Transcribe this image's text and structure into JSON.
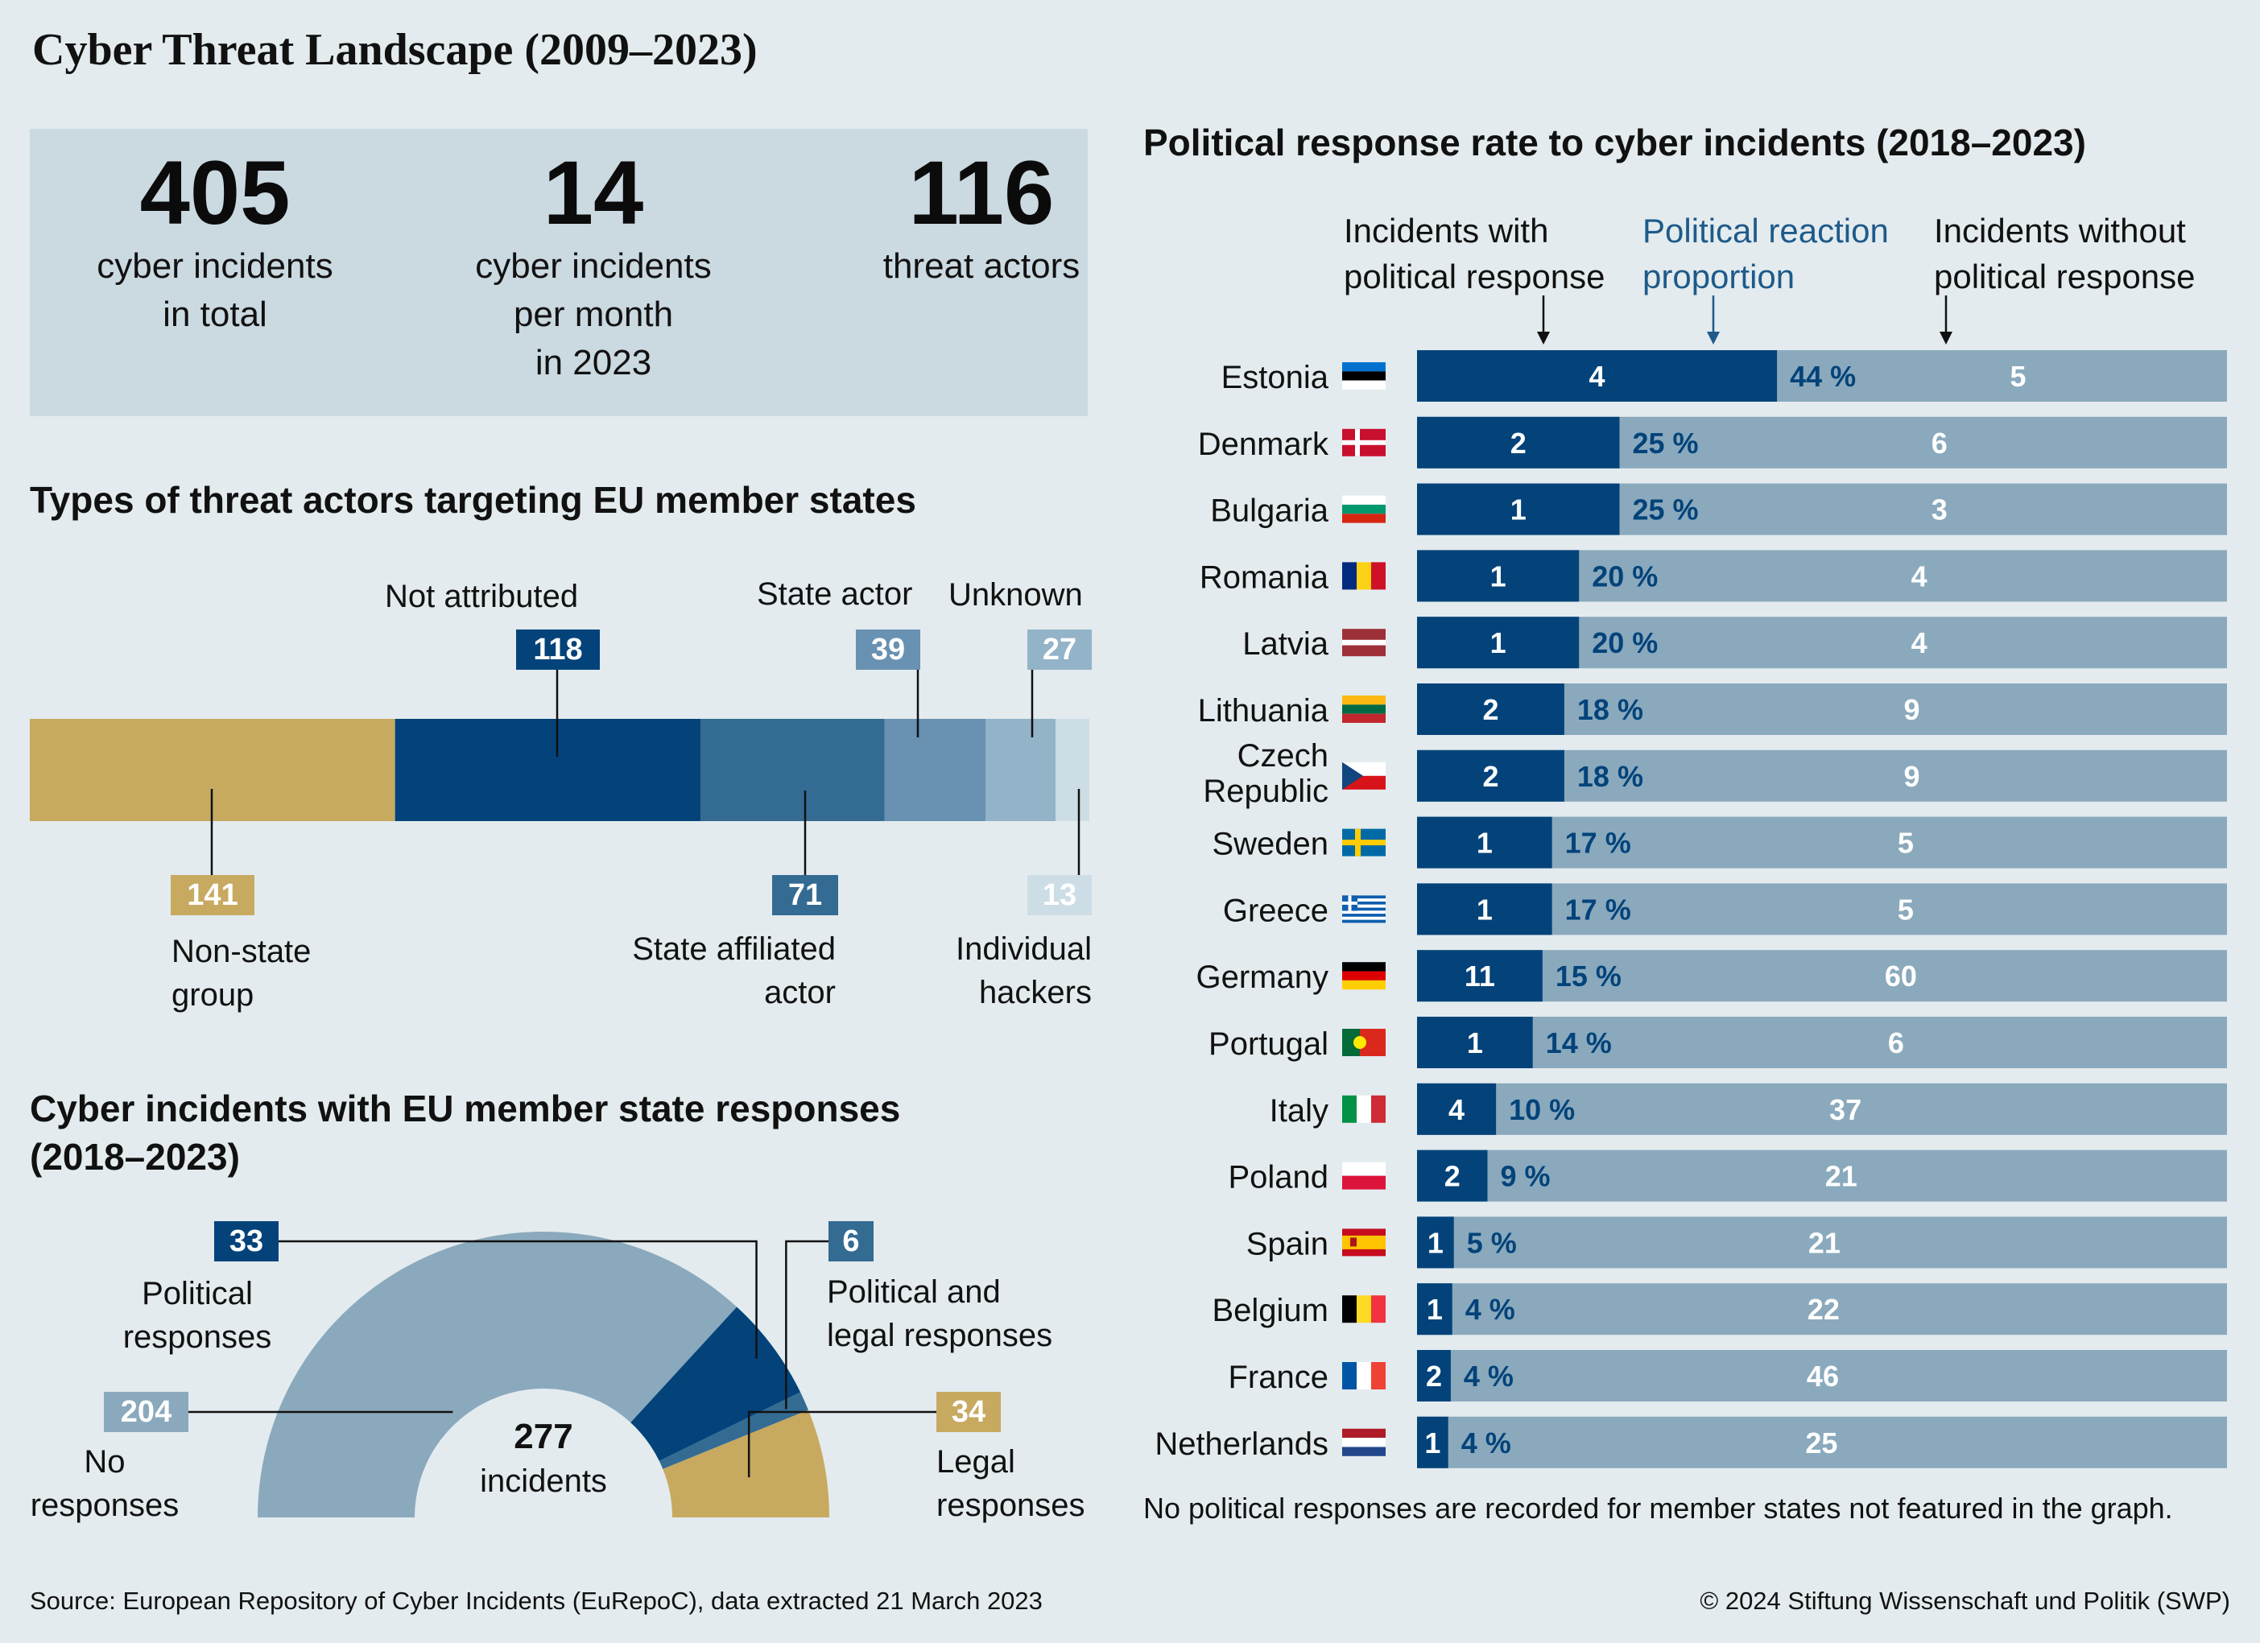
{
  "title": "Cyber Threat Landscape (2009–2023)",
  "stats": [
    {
      "value": "405",
      "label_lines": [
        "cyber incidents",
        "in total"
      ]
    },
    {
      "value": "14",
      "label_lines": [
        "cyber incidents",
        "per month",
        "in 2023"
      ]
    },
    {
      "value": "116",
      "label_lines": [
        "threat actors"
      ]
    }
  ],
  "colors": {
    "navy": "#03437a",
    "mid_blue": "#346b93",
    "steel_blue": "#6991b1",
    "light_blue": "#93b3c8",
    "pale_blue": "#cddde6",
    "gold": "#c7a960",
    "grey_blue": "#8aa9bd",
    "background": "#e3ebee"
  },
  "chart_data": [
    {
      "type": "bar",
      "orientation": "stacked-horizontal",
      "title": "Types of threat actors targeting EU member states",
      "series": [
        {
          "name": "Non-state group",
          "value": 141,
          "color": "#c7a960"
        },
        {
          "name": "Not attributed",
          "value": 118,
          "color": "#03437a"
        },
        {
          "name": "State affiliated actor",
          "value": 71,
          "color": "#346b93"
        },
        {
          "name": "State actor",
          "value": 39,
          "color": "#6991b1"
        },
        {
          "name": "Unknown",
          "value": 27,
          "color": "#93b3c8"
        },
        {
          "name": "Individual hackers",
          "value": 13,
          "color": "#cddde6"
        }
      ],
      "label_texts": {
        "Non-state group": [
          "Non-state",
          "group"
        ],
        "Not attributed": [
          "Not attributed"
        ],
        "State affiliated actor": [
          "State affiliated",
          "actor"
        ],
        "State actor": [
          "State actor"
        ],
        "Unknown": [
          "Unknown"
        ],
        "Individual hackers": [
          "Individual",
          "hackers"
        ]
      }
    },
    {
      "type": "pie",
      "variant": "semicircle-donut",
      "title": "Cyber incidents with EU member state responses (2018–2023)",
      "center_value": "277",
      "center_label": "incidents",
      "slices": [
        {
          "name": "No responses",
          "label_lines": [
            "No",
            "responses"
          ],
          "value": 204,
          "color": "#8aa9bd"
        },
        {
          "name": "Political responses",
          "label_lines": [
            "Political",
            "responses"
          ],
          "value": 33,
          "color": "#03437a"
        },
        {
          "name": "Political and legal responses",
          "label_lines": [
            "Political and",
            "legal responses"
          ],
          "value": 6,
          "color": "#346b93"
        },
        {
          "name": "Legal responses",
          "label_lines": [
            "Legal",
            "responses"
          ],
          "value": 34,
          "color": "#c7a960"
        }
      ]
    },
    {
      "type": "bar",
      "orientation": "horizontal-stacked",
      "title": "Political response rate to cyber incidents (2018–2023)",
      "column_headers": {
        "with": [
          "Incidents with",
          "political response"
        ],
        "proportion": [
          "Political reaction",
          "proportion"
        ],
        "without": [
          "Incidents without",
          "political response"
        ]
      },
      "categories": [
        "Estonia",
        "Denmark",
        "Bulgaria",
        "Romania",
        "Latvia",
        "Lithuania",
        "Czech Republic",
        "Sweden",
        "Greece",
        "Germany",
        "Portugal",
        "Italy",
        "Poland",
        "Spain",
        "Belgium",
        "France",
        "Netherlands"
      ],
      "with_response": [
        4,
        2,
        1,
        1,
        1,
        2,
        2,
        1,
        1,
        11,
        1,
        4,
        2,
        1,
        1,
        2,
        1
      ],
      "without_response": [
        5,
        6,
        3,
        4,
        4,
        9,
        9,
        5,
        5,
        60,
        6,
        37,
        21,
        21,
        22,
        46,
        25
      ],
      "proportion_labels": [
        "44 %",
        "25 %",
        "25 %",
        "20 %",
        "20 %",
        "18 %",
        "18 %",
        "17 %",
        "17 %",
        "15 %",
        "14 %",
        "10 %",
        "9 %",
        "5 %",
        "4 %",
        "4 %",
        "4 %"
      ],
      "proportion_pct": [
        44,
        25,
        25,
        20,
        20,
        18,
        18,
        17,
        17,
        15,
        14,
        10,
        9,
        5,
        4,
        4,
        4
      ],
      "footnote": "No political responses are recorded for member states not featured in the graph."
    }
  ],
  "footer": {
    "source": "Source: European Repository of Cyber Incidents (EuRepoC), data extracted 21 March 2023",
    "copyright": "© 2024 Stiftung Wissenschaft und Politik (SWP)"
  }
}
